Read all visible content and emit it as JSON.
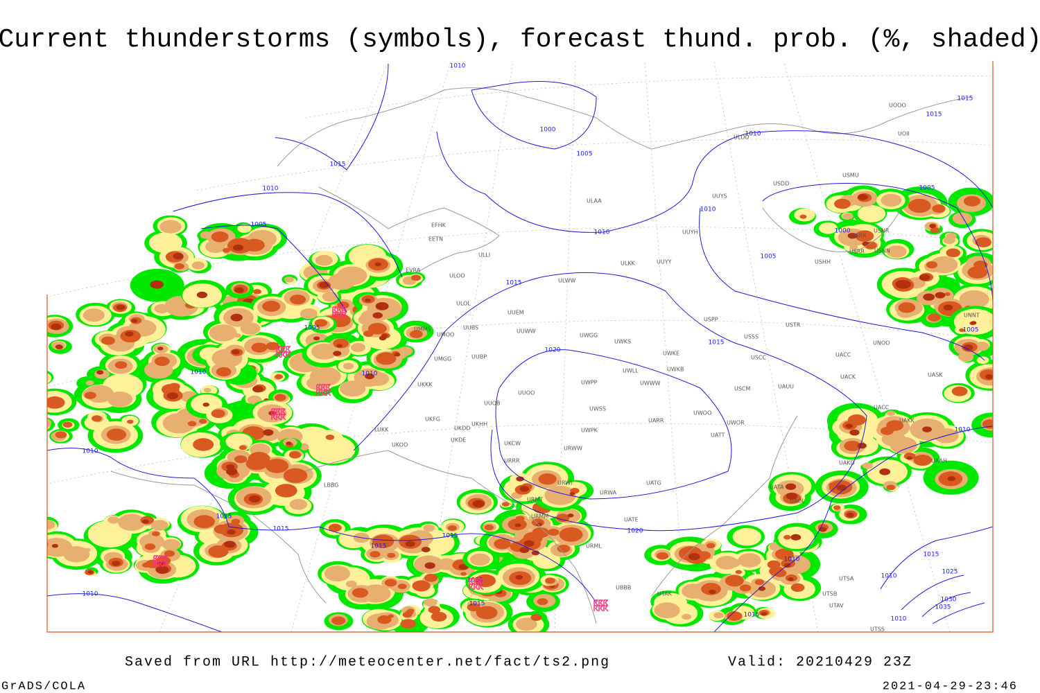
{
  "title": "Current thunderstorms (symbols), forecast thund. prob. (%, shaded)",
  "footer": {
    "saved": "Saved from URL http://meteocenter.net/fact/ts2.png",
    "valid": "Valid: 20210429 23Z",
    "software": "GrADS/COLA",
    "timestamp": "2021-04-29-23:46"
  },
  "isobar_labels": [
    "1010",
    "1015",
    "1010",
    "1005",
    "1000",
    "1005",
    "1010",
    "1015",
    "1015",
    "1010",
    "1010",
    "1015",
    "1020",
    "1015",
    "1005",
    "1005",
    "1000",
    "1005",
    "1010",
    "1005",
    "1010",
    "1010",
    "1015",
    "1015",
    "1015",
    "1015",
    "1020",
    "1015",
    "1010",
    "1020",
    "1010",
    "1015",
    "1010",
    "1015",
    "1025",
    "1030",
    "1035",
    "1010",
    "1010"
  ],
  "stations": [
    "EFHK",
    "EETN",
    "ULLI",
    "EVRA",
    "ULOO",
    "ULOL",
    "UMMS",
    "UMOO",
    "UUBS",
    "UMGG",
    "UUBP",
    "UKKK",
    "UUOB",
    "UKHH",
    "UKFG",
    "UKDD",
    "UKDE",
    "UKOO",
    "LUKK",
    "UKCW",
    "URRR",
    "UUOO",
    "UUEM",
    "UUWW",
    "ULWW",
    "ULKK",
    "UUYY",
    "ULAA",
    "UUYH",
    "UUYS",
    "USDD",
    "USMU",
    "UOOO",
    "UOII",
    "ULDD",
    "UWGG",
    "UWKS",
    "UWKE",
    "UWKB",
    "UWLL",
    "UWPP",
    "UWWW",
    "UWSS",
    "UWPK",
    "URWW",
    "UARR",
    "UWOO",
    "UWOR",
    "UATT",
    "USCM",
    "UAUU",
    "USCC",
    "USSS",
    "USTR",
    "USPP",
    "UNOO",
    "UACC",
    "UACK",
    "UASK",
    "UACC",
    "UAKK",
    "UAKD",
    "UAAH",
    "UATG",
    "URWI",
    "URWA",
    "URMT",
    "URMM",
    "UATE",
    "URML",
    "UBBB",
    "UTAK",
    "UATA",
    "UAOL",
    "UTSA",
    "UTSB",
    "UTAV",
    "UTSS",
    "USNN",
    "USRR",
    "USNR",
    "USHH",
    "USRK",
    "UNNT",
    "LBBG"
  ]
}
